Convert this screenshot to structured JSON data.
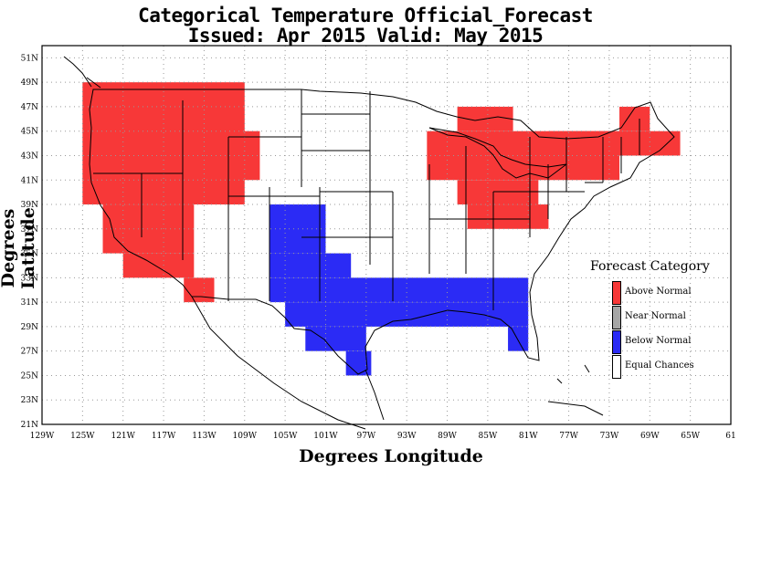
{
  "title": {
    "line1": "Categorical Temperature Official_Forecast",
    "line2": "Issued: Apr 2015 Valid: May 2015"
  },
  "xlabel": "Degrees Longitude",
  "ylabel": "Degrees Latitude",
  "legend": {
    "title": "Forecast Category",
    "items": [
      {
        "label": "Above Normal",
        "color": "#f73838"
      },
      {
        "label": "Near Normal",
        "color": "#a6a6a6"
      },
      {
        "label": "Below Normal",
        "color": "#2b2bf5"
      },
      {
        "label": "Equal Chances",
        "color": "#ffffff"
      }
    ]
  },
  "chart_data": {
    "type": "heatmap",
    "grid": true,
    "xlim": [
      -129,
      -61
    ],
    "ylim": [
      21,
      52
    ],
    "x_ticks": [
      "129W",
      "125W",
      "121W",
      "117W",
      "113W",
      "109W",
      "105W",
      "101W",
      "97W",
      "93W",
      "89W",
      "85W",
      "81W",
      "77W",
      "73W",
      "69W",
      "65W",
      "61"
    ],
    "y_ticks": [
      "21N",
      "23N",
      "25N",
      "27N",
      "29N",
      "31N",
      "33N",
      "35N",
      "37N",
      "39N",
      "41N",
      "43N",
      "45N",
      "47N",
      "49N",
      "51N"
    ],
    "categories": [
      "Above Normal",
      "Near Normal",
      "Below Normal",
      "Equal Chances"
    ],
    "above_normal_regions": [
      {
        "lon": [
          -125,
          -109
        ],
        "lat": [
          39,
          49
        ]
      },
      {
        "lon": [
          -123,
          -114
        ],
        "lat": [
          35,
          39
        ]
      },
      {
        "lon": [
          -121,
          -114
        ],
        "lat": [
          33,
          35
        ]
      },
      {
        "lon": [
          -115,
          -112
        ],
        "lat": [
          31,
          33
        ]
      },
      {
        "lon": [
          -110,
          -107.5
        ],
        "lat": [
          41,
          45
        ]
      },
      {
        "lon": [
          -91,
          -72
        ],
        "lat": [
          41,
          45
        ]
      },
      {
        "lon": [
          -88,
          -82.5
        ],
        "lat": [
          45,
          47
        ]
      },
      {
        "lon": [
          -88,
          -80
        ],
        "lat": [
          39,
          41
        ]
      },
      {
        "lon": [
          -87,
          -79
        ],
        "lat": [
          37,
          39
        ]
      },
      {
        "lon": [
          -79,
          -66
        ],
        "lat": [
          43,
          45
        ]
      },
      {
        "lon": [
          -72,
          -69
        ],
        "lat": [
          45,
          47
        ]
      }
    ],
    "below_normal_regions": [
      {
        "lon": [
          -106.5,
          -101
        ],
        "lat": [
          35,
          39
        ]
      },
      {
        "lon": [
          -106.5,
          -98.5
        ],
        "lat": [
          33,
          35
        ]
      },
      {
        "lon": [
          -106.5,
          -81
        ],
        "lat": [
          31,
          33
        ]
      },
      {
        "lon": [
          -105,
          -81
        ],
        "lat": [
          29,
          31
        ]
      },
      {
        "lon": [
          -103,
          -97
        ],
        "lat": [
          27,
          29
        ]
      },
      {
        "lon": [
          -99,
          -96.5
        ],
        "lat": [
          25,
          27
        ]
      },
      {
        "lon": [
          -83,
          -81
        ],
        "lat": [
          27,
          29
        ]
      }
    ]
  }
}
